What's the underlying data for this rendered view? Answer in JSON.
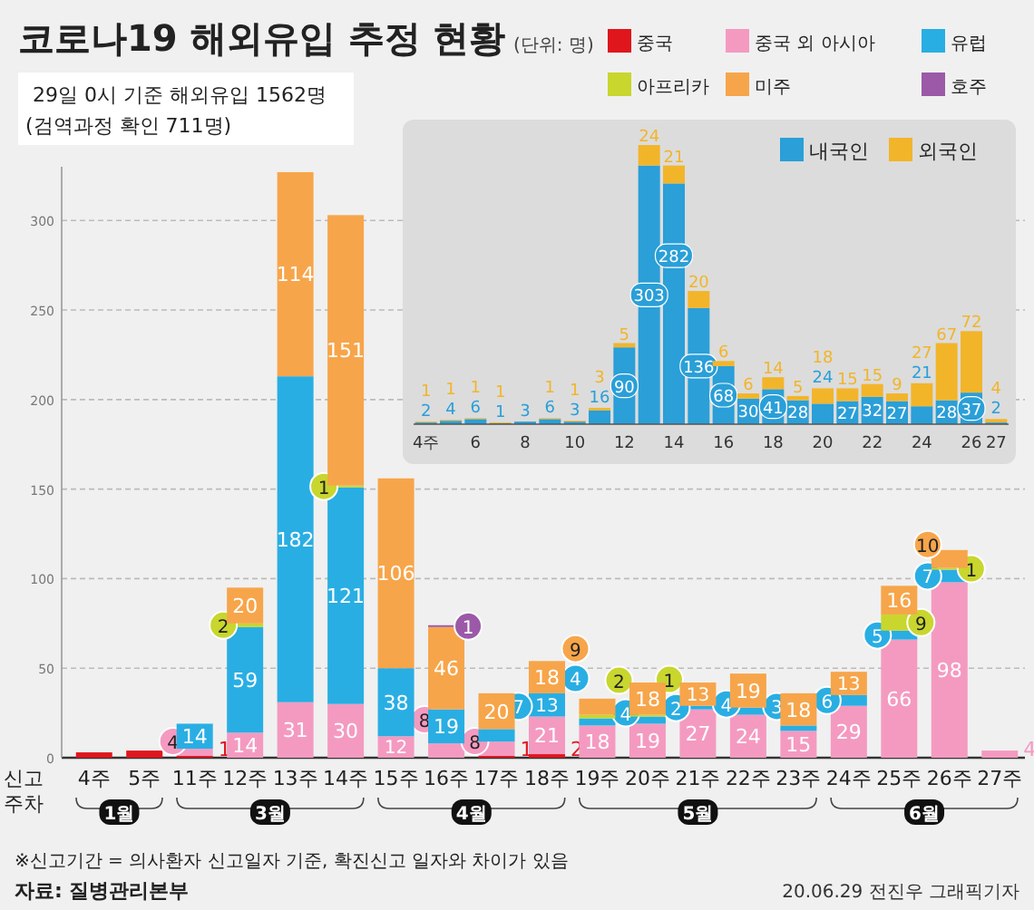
{
  "chart_data": [
    {
      "type": "bar",
      "stacked": true,
      "title": "코로나19 해외유입 추정 현황",
      "subtitle": "(단위: 명)",
      "xlabel": "신고 주차",
      "categories": [
        "4주",
        "5주",
        "11주",
        "12주",
        "13주",
        "14주",
        "15주",
        "16주",
        "17주",
        "18주",
        "19주",
        "20주",
        "21주",
        "22주",
        "23주",
        "24주",
        "25주",
        "26주",
        "27주"
      ],
      "series": [
        {
          "name": "중국",
          "color": "#e0161d",
          "values": [
            3,
            4,
            1,
            0,
            0,
            0,
            0,
            0,
            1,
            2,
            0,
            0,
            0,
            0,
            0,
            0,
            0,
            0,
            0
          ],
          "value_labels": [
            null,
            null,
            "1",
            null,
            null,
            null,
            null,
            null,
            "1",
            "2",
            null,
            null,
            null,
            null,
            null,
            null,
            null,
            null,
            null
          ]
        },
        {
          "name": "중국 외 아시아",
          "color": "#f49ac1",
          "values": [
            0,
            0,
            4,
            14,
            31,
            30,
            12,
            8,
            8,
            21,
            18,
            19,
            27,
            24,
            15,
            29,
            66,
            98,
            4
          ],
          "value_labels": [
            null,
            null,
            "4",
            "14",
            "31",
            "30",
            "12",
            "8",
            "8",
            "21",
            "18",
            "19",
            "27",
            "24",
            "15",
            "29",
            "66",
            "98",
            "4"
          ]
        },
        {
          "name": "유럽",
          "color": "#29aee3",
          "values": [
            0,
            0,
            14,
            59,
            182,
            121,
            38,
            19,
            7,
            13,
            4,
            4,
            2,
            4,
            3,
            6,
            5,
            7,
            0
          ],
          "value_labels": [
            null,
            null,
            "14",
            "59",
            "182",
            "121",
            "38",
            "19",
            "7",
            "13",
            "4",
            "4",
            "2",
            "4",
            "3",
            "6",
            "5",
            "7",
            null
          ]
        },
        {
          "name": "아프리카",
          "color": "#c8d62e",
          "values": [
            0,
            0,
            0,
            2,
            0,
            1,
            0,
            0,
            0,
            0,
            2,
            1,
            0,
            0,
            0,
            0,
            9,
            1,
            0
          ],
          "value_labels": [
            null,
            null,
            null,
            "2",
            null,
            "1",
            null,
            null,
            null,
            null,
            "2",
            "1",
            null,
            null,
            null,
            null,
            "9",
            "1",
            null
          ]
        },
        {
          "name": "미주",
          "color": "#f7a54a",
          "values": [
            0,
            0,
            0,
            20,
            114,
            151,
            106,
            46,
            20,
            18,
            9,
            18,
            13,
            19,
            18,
            13,
            16,
            10,
            0
          ],
          "value_labels": [
            null,
            null,
            null,
            "20",
            "114",
            "151",
            "106",
            "46",
            "20",
            "18",
            "9",
            "18",
            "13",
            "19",
            "18",
            "13",
            "16",
            "10",
            null
          ]
        },
        {
          "name": "호주",
          "color": "#9b59a8",
          "values": [
            0,
            0,
            0,
            0,
            0,
            0,
            0,
            1,
            0,
            0,
            0,
            0,
            0,
            0,
            0,
            0,
            0,
            0,
            0
          ],
          "value_labels": [
            null,
            null,
            null,
            null,
            null,
            null,
            null,
            "1",
            null,
            null,
            null,
            null,
            null,
            null,
            null,
            null,
            null,
            null,
            null
          ]
        }
      ],
      "ylim": [
        0,
        330
      ],
      "yticks": [
        0,
        50,
        100,
        150,
        200,
        250,
        300
      ],
      "grid": "y",
      "legend": "top right",
      "annotations": [
        "1월",
        "3월",
        "4월",
        "5월",
        "6월",
        "29일 0시 기준 해외유입 1562명",
        "(검역과정 확인 711명)",
        "※신고기간 = 의사환자 신고일자 기준, 확진신고 일자와 차이가 있음",
        "자료: 질병관리본부",
        "20.06.29 전진우 그래픽기자"
      ]
    },
    {
      "type": "bar",
      "stacked": true,
      "categories": [
        "4주",
        null,
        "6",
        null,
        "8",
        null,
        "10",
        null,
        "12",
        null,
        "14",
        null,
        "16",
        null,
        "18",
        null,
        "20",
        null,
        "22",
        null,
        "24",
        null,
        "26",
        "27"
      ],
      "series": [
        {
          "name": "내국인",
          "color": "#2a9fd8",
          "values": [
            2,
            4,
            6,
            1,
            3,
            6,
            3,
            16,
            90,
            303,
            282,
            136,
            68,
            30,
            41,
            28,
            24,
            27,
            32,
            27,
            21,
            28,
            37,
            2
          ],
          "value_labels": [
            "2",
            "4",
            "6",
            "1",
            "3",
            "6",
            "3",
            "16",
            "90",
            "303",
            "282",
            "136",
            "68",
            "30",
            "41",
            "28",
            "24",
            "27",
            "32",
            "27",
            "21",
            "28",
            "37",
            "2"
          ]
        },
        {
          "name": "외국인",
          "color": "#f2b52a",
          "values": [
            1,
            1,
            1,
            1,
            0,
            1,
            1,
            3,
            5,
            24,
            21,
            20,
            6,
            6,
            14,
            5,
            18,
            15,
            15,
            9,
            27,
            67,
            72,
            4
          ],
          "value_labels": [
            "1",
            "1",
            "1",
            "1",
            null,
            "1",
            "1",
            "3",
            "5",
            "24",
            "21",
            "20",
            "6",
            "6",
            "14",
            "5",
            "18",
            "15",
            "15",
            "9",
            "27",
            "67",
            "72",
            "4"
          ]
        }
      ],
      "tick_labels": "x",
      "legend": "top right"
    }
  ]
}
